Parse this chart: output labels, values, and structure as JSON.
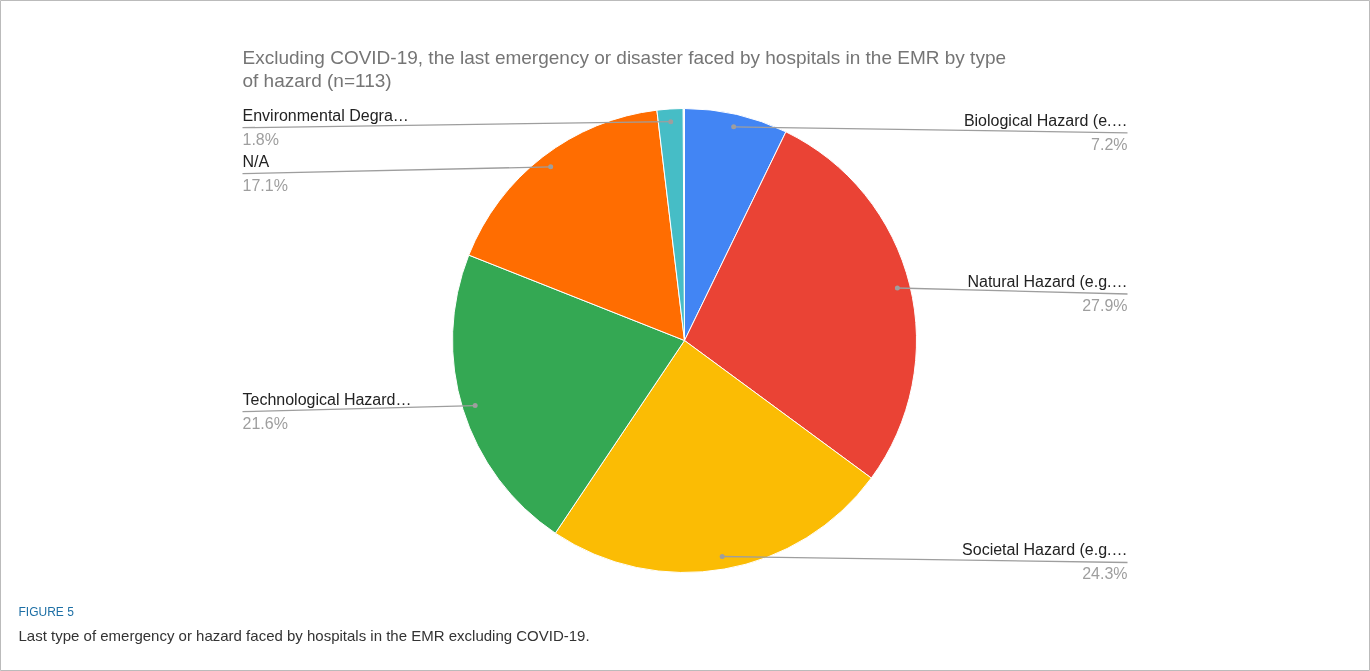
{
  "chart_data": {
    "type": "pie",
    "title": "Excluding COVID-19, the last emergency or disaster faced by hospitals in the EMR by type\nof hazard (n=113)",
    "categories": [
      "Biological Hazard (e.…",
      "Natural Hazard (e.g.…",
      "Societal Hazard (e.g.…",
      "Technological Hazard…",
      "N/A",
      "Environmental Degra…"
    ],
    "values": [
      7.2,
      27.9,
      24.3,
      21.6,
      17.1,
      1.8
    ],
    "value_labels": [
      "7.2%",
      "27.9%",
      "24.3%",
      "21.6%",
      "17.1%",
      "1.8%"
    ],
    "colors": [
      "#4285f4",
      "#ea4335",
      "#fbbc04",
      "#34a853",
      "#ff6d01",
      "#46bdc6"
    ],
    "annotations": [
      "FIGURE 5",
      "Last type of emergency or hazard faced by hospitals in the EMR excluding COVID-19."
    ]
  }
}
